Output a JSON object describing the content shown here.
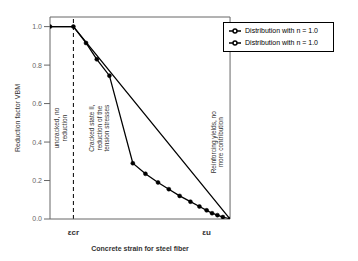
{
  "chart_data": {
    "type": "line",
    "y_label": "Reduction factor VBM",
    "x_label": "Concrete strain for steel fiber",
    "series": [
      {
        "name": "Distribution with n = 1.0",
        "color": "#000000",
        "x": [
          0.0,
          0.13,
          1.0
        ],
        "values": [
          1.0,
          1.0,
          0.0
        ]
      },
      {
        "name": "Distribution with n = 1.0",
        "color": "#000000",
        "marker": "circle",
        "x": [
          0.0,
          0.13,
          0.2,
          0.26,
          0.33,
          0.46,
          0.53,
          0.6,
          0.66,
          0.72,
          0.78,
          0.83,
          0.87,
          0.9,
          0.93,
          0.96,
          1.0
        ],
        "values": [
          1.0,
          1.0,
          0.915,
          0.83,
          0.745,
          0.29,
          0.235,
          0.19,
          0.155,
          0.12,
          0.09,
          0.065,
          0.045,
          0.03,
          0.02,
          0.01,
          0.0
        ]
      }
    ],
    "xlim": [
      0.0,
      1.0
    ],
    "ylim": [
      0.0,
      1.05
    ],
    "yticks": [
      {
        "value": 0.0,
        "label": "0.0"
      },
      0.2,
      0.4,
      0.6,
      0.8,
      {
        "value": 1.0,
        "label": "1.0"
      }
    ],
    "tick_labels": "y",
    "legend": "upper right",
    "reference_lines": [
      {
        "x": 0.13,
        "color": "#000000",
        "line_style": "dashed"
      }
    ],
    "axis_annotations": [
      {
        "text": "εcr",
        "x": 0.13
      },
      {
        "text": "εu",
        "x": 0.87
      }
    ],
    "annotations": [
      {
        "text": "uncracked, no\nreduction",
        "x": 0.0585
      },
      {
        "text": "Cracked state II,\nreduction of the\ntension stresses",
        "x": 0.275
      },
      {
        "text": "Reinforcing yields, no\nmore contribution",
        "x": 0.93
      }
    ]
  }
}
